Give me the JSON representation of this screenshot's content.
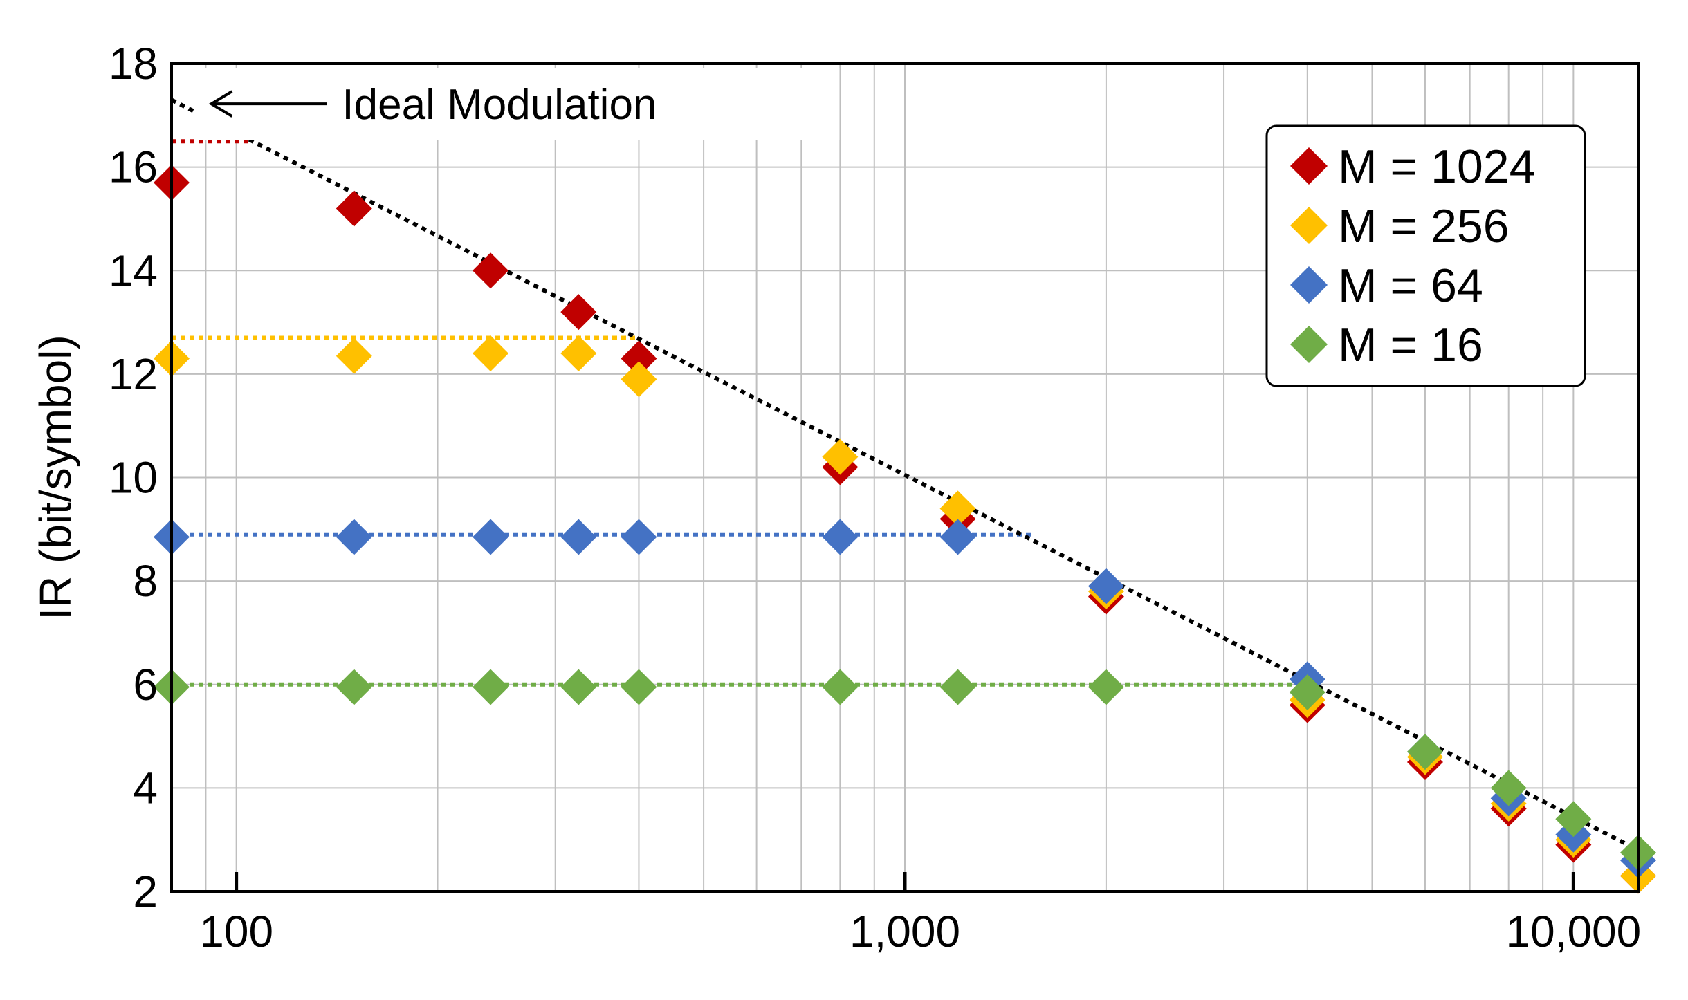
{
  "chart_data": {
    "type": "scatter",
    "title": "",
    "xlabel": "",
    "ylabel": "IR (bit/symbol)",
    "xscale": "log",
    "xlim": [
      80,
      12500
    ],
    "ylim": [
      2,
      18
    ],
    "grid": true,
    "xticks": [
      {
        "value": 100,
        "label": "100"
      },
      {
        "value": 1000,
        "label": "1,000"
      },
      {
        "value": 10000,
        "label": "10,000"
      }
    ],
    "yticks": [
      {
        "value": 2,
        "label": "2"
      },
      {
        "value": 4,
        "label": "4"
      },
      {
        "value": 6,
        "label": "6"
      },
      {
        "value": 8,
        "label": "8"
      },
      {
        "value": 10,
        "label": "10"
      },
      {
        "value": 12,
        "label": "12"
      },
      {
        "value": 14,
        "label": "14"
      },
      {
        "value": 16,
        "label": "16"
      },
      {
        "value": 18,
        "label": "18"
      }
    ],
    "legend_position": "top-right",
    "series": [
      {
        "name": "M = 1024",
        "color": "#C00000",
        "ceiling": 16.5,
        "ceiling_x": [
          80,
          105
        ],
        "x": [
          80,
          150,
          240,
          325,
          400,
          800,
          1200,
          2000,
          4000,
          6000,
          8000,
          10000,
          12500
        ],
        "y": [
          15.7,
          15.2,
          14.0,
          13.2,
          12.3,
          10.2,
          9.2,
          7.7,
          5.6,
          4.5,
          3.6,
          2.9,
          2.3
        ]
      },
      {
        "name": "M = 256",
        "color": "#FFC000",
        "ceiling": 12.7,
        "ceiling_x": [
          80,
          400
        ],
        "x": [
          80,
          150,
          240,
          325,
          400,
          800,
          1200,
          2000,
          4000,
          6000,
          8000,
          10000,
          12500
        ],
        "y": [
          12.3,
          12.35,
          12.4,
          12.4,
          11.9,
          10.4,
          9.4,
          7.8,
          5.7,
          4.6,
          3.7,
          3.0,
          2.3
        ]
      },
      {
        "name": "M = 64",
        "color": "#4472C4",
        "ceiling": 8.9,
        "ceiling_x": [
          80,
          1550
        ],
        "x": [
          80,
          150,
          240,
          325,
          400,
          800,
          1200,
          2000,
          4000,
          6000,
          8000,
          10000,
          12500
        ],
        "y": [
          8.85,
          8.85,
          8.85,
          8.85,
          8.85,
          8.85,
          8.85,
          7.9,
          6.1,
          4.7,
          3.8,
          3.1,
          2.6
        ]
      },
      {
        "name": "M = 16",
        "color": "#70AD47",
        "ceiling": 6.0,
        "ceiling_x": [
          80,
          4000
        ],
        "x": [
          80,
          150,
          240,
          325,
          400,
          800,
          1200,
          2000,
          4000,
          6000,
          8000,
          10000,
          12500
        ],
        "y": [
          5.95,
          5.95,
          5.95,
          5.95,
          5.95,
          5.95,
          5.95,
          5.95,
          5.85,
          4.7,
          4.0,
          3.4,
          2.75
        ]
      }
    ],
    "ideal_line": {
      "name": "Ideal Modulation",
      "color": "#000000",
      "x": [
        80,
        12500
      ],
      "y": [
        17.3,
        2.8
      ]
    },
    "annotations": [
      {
        "text": "Ideal Modulation",
        "x": 90,
        "y": 17.25
      }
    ]
  }
}
